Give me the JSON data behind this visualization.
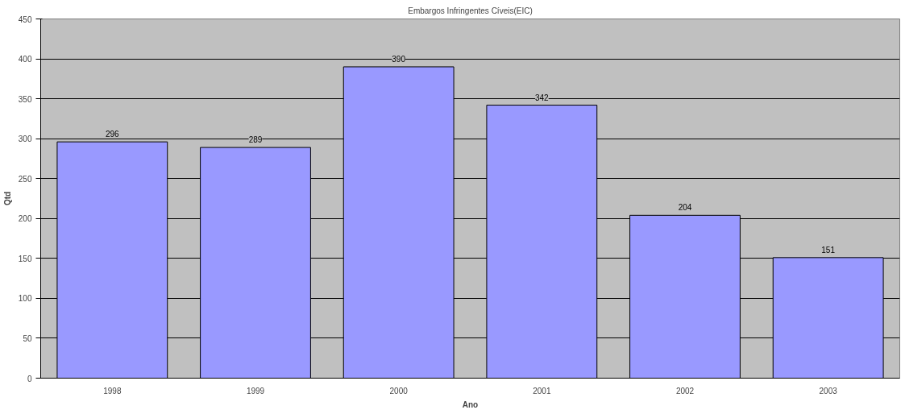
{
  "chart_data": {
    "type": "bar",
    "title": "Embargos Infringentes Cíveis(EIC)",
    "xlabel": "Ano",
    "ylabel": "Qtd",
    "categories": [
      "1998",
      "1999",
      "2000",
      "2001",
      "2002",
      "2003"
    ],
    "values": [
      296,
      289,
      390,
      342,
      204,
      151
    ],
    "color": "#9999ff",
    "ylim": [
      0,
      450
    ],
    "yticks": [
      0,
      50,
      100,
      150,
      200,
      250,
      300,
      350,
      400,
      450
    ],
    "grid": "y",
    "data_labels": true
  }
}
